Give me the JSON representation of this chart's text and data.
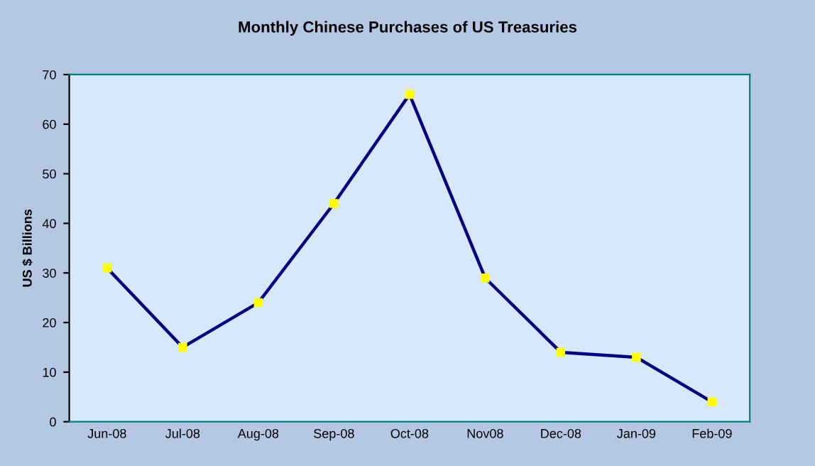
{
  "chart_data": {
    "type": "line",
    "title": "Monthly Chinese Purchases of US Treasuries",
    "ylabel": "US $ Billions",
    "categories": [
      "Jun-08",
      "Jul-08",
      "Aug-08",
      "Sep-08",
      "Oct-08",
      "Nov08",
      "Dec-08",
      "Jan-09",
      "Feb-09"
    ],
    "series": [
      {
        "color": "#000080",
        "values": [
          31,
          15,
          24,
          44,
          66,
          29,
          14,
          13,
          4
        ]
      }
    ],
    "marker": "square",
    "line_style": "solid",
    "ylim": [
      0,
      70
    ],
    "yticks": [
      0,
      10,
      20,
      30,
      40,
      50,
      60,
      70
    ],
    "grid": false,
    "legend": false
  }
}
